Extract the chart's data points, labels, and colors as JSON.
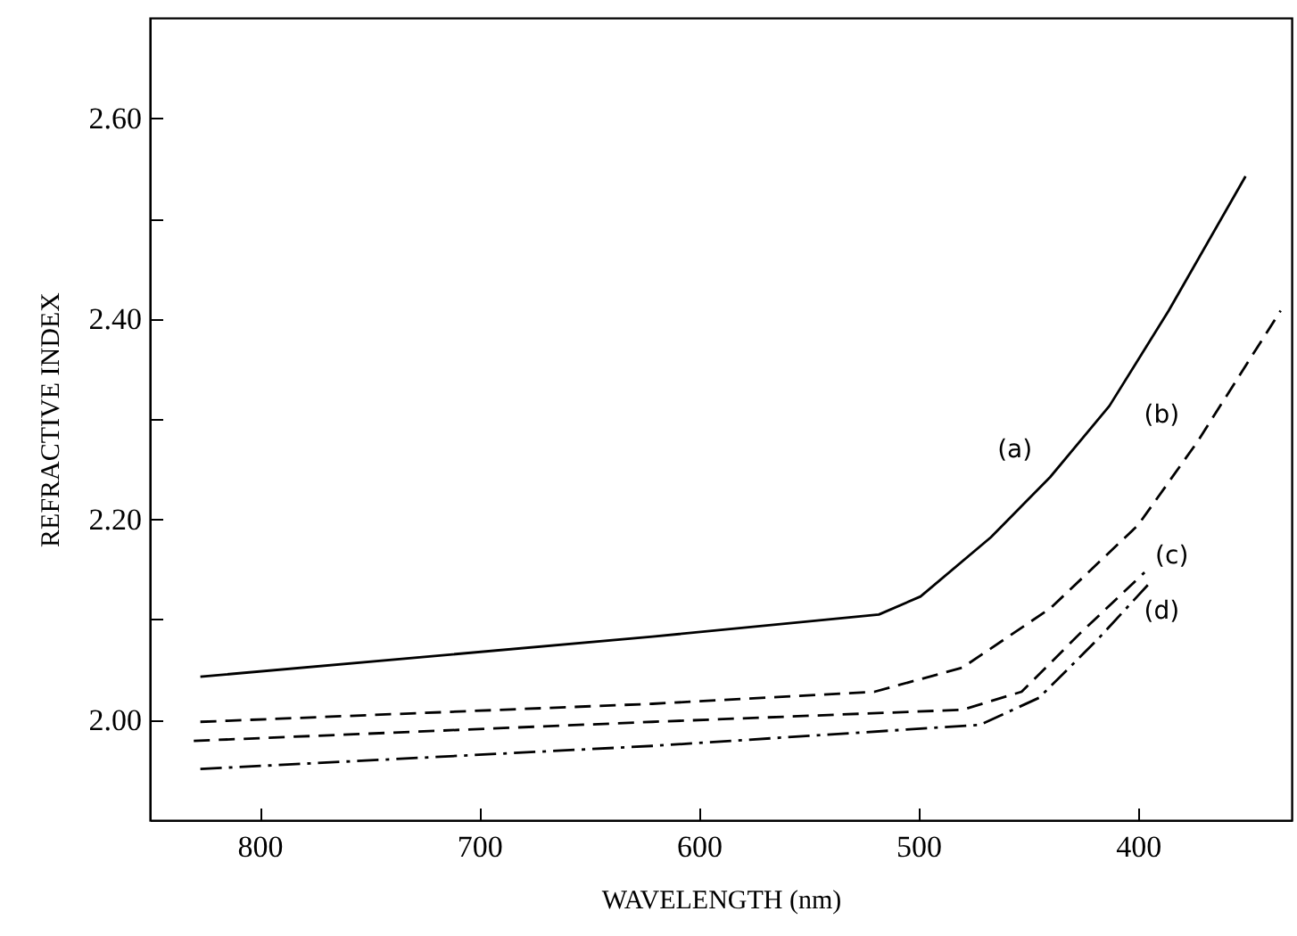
{
  "chart_data": {
    "type": "line",
    "xlabel": "WAVELENGTH (nm)",
    "ylabel": "REFRACTIVE INDEX",
    "xlim": [
      850,
      330
    ],
    "xticks": [
      800,
      700,
      600,
      500,
      400
    ],
    "ylim": [
      1.9,
      2.7
    ],
    "yticks": [
      {
        "value": 2.0,
        "label": "2.00"
      },
      {
        "value": 2.1,
        "label": null
      },
      {
        "value": 2.2,
        "label": "2.20"
      },
      {
        "value": 2.3,
        "label": null
      },
      {
        "value": 2.4,
        "label": "2.40"
      },
      {
        "value": 2.5,
        "label": null
      },
      {
        "value": 2.6,
        "label": "2.60"
      }
    ],
    "grid": false,
    "marker": "none",
    "series": [
      {
        "color": "#000000",
        "line_style": "solid",
        "x": [
          827,
          621,
          518,
          499,
          467,
          440,
          413,
          386,
          351
        ],
        "values": [
          2.043,
          2.083,
          2.105,
          2.123,
          2.182,
          2.242,
          2.313,
          2.408,
          2.542
        ]
      },
      {
        "color": "#000000",
        "line_style": "dashed",
        "x": [
          827,
          621,
          520,
          480,
          440,
          400,
          373,
          335
        ],
        "values": [
          1.998,
          2.016,
          2.028,
          2.052,
          2.111,
          2.194,
          2.277,
          2.408
        ]
      },
      {
        "color": "#000000",
        "line_style": "dashed",
        "x": [
          830,
          621,
          480,
          453,
          426,
          397
        ],
        "values": [
          1.979,
          1.998,
          2.01,
          2.028,
          2.087,
          2.147
        ]
      },
      {
        "color": "#000000",
        "line_style": "dotted",
        "x": [
          827,
          621,
          472,
          445,
          418,
          394
        ],
        "values": [
          1.951,
          1.974,
          1.995,
          2.022,
          2.081,
          2.138
        ]
      }
    ],
    "annotations": [
      {
        "text": "(a)",
        "x": 440,
        "y": 2.242
      },
      {
        "text": "(b)",
        "x": 373,
        "y": 2.277
      },
      {
        "text": "(c)",
        "x": 397,
        "y": 2.147
      },
      {
        "text": "(d)",
        "x": 394,
        "y": 2.138
      }
    ]
  }
}
